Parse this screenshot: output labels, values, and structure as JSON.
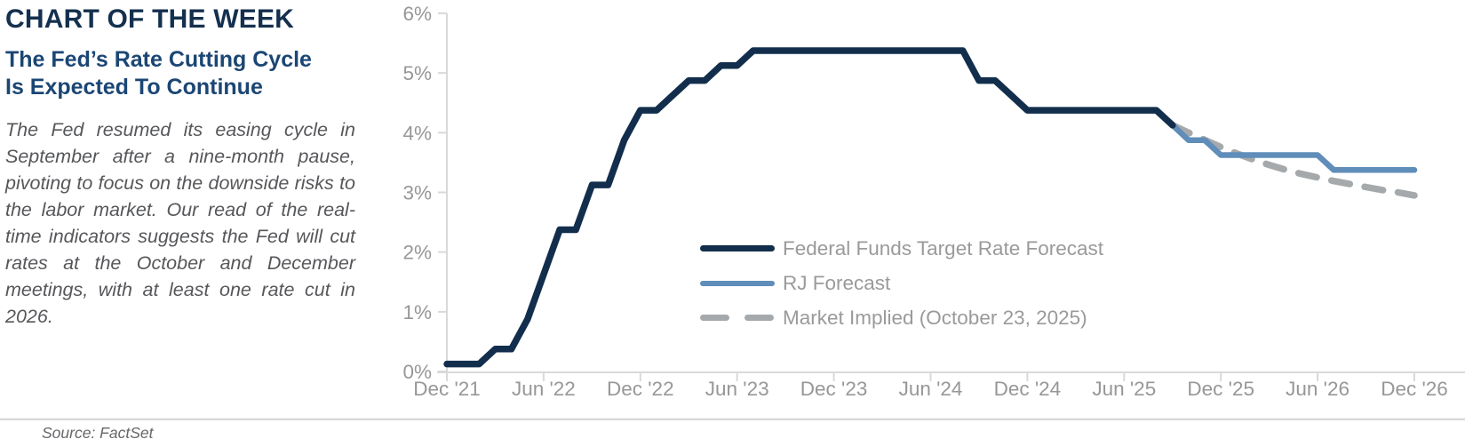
{
  "panel": {
    "kicker": "CHART OF THE WEEK",
    "headline_lines": [
      "The Fed’s Rate Cutting Cycle",
      "Is Expected To Continue"
    ],
    "body": "The Fed resumed its easing cycle in September after a nine-month pause, pivoting to focus on the downside risks to the labor market. Our read of the real-time indicators suggests the Fed will cut rates at the October and December meetings, with at least one rate cut in 2026.",
    "source": "Source: FactSet"
  },
  "colors": {
    "navy": "#122e4c",
    "headline_navy": "#1b4674",
    "kicker_navy": "#14304e",
    "rj_blue": "#608db9",
    "implied_gray": "#a6a9ab",
    "axis_line": "#d9d9d9",
    "axis_text": "#979797",
    "legend_text": "#9a9a9a"
  },
  "chart_data": {
    "type": "line",
    "title": "",
    "xlabel": "",
    "ylabel": "",
    "grid": false,
    "legend_position": "inside lower-right",
    "x_unit": "months since Dec 2021",
    "xlim": [
      0,
      60
    ],
    "ylim": [
      0,
      6
    ],
    "y_tick_labels": [
      "0%",
      "1%",
      "2%",
      "3%",
      "4%",
      "5%",
      "6%"
    ],
    "y_tick_values": [
      0,
      1,
      2,
      3,
      4,
      5,
      6
    ],
    "x_tick_labels": [
      "Dec '21",
      "Jun '22",
      "Dec '22",
      "Jun '23",
      "Dec '23",
      "Jun '24",
      "Dec '24",
      "Jun '25",
      "Dec '25",
      "Jun '26",
      "Dec '26"
    ],
    "x_tick_positions": [
      0,
      6,
      12,
      18,
      24,
      30,
      36,
      42,
      48,
      54,
      60
    ],
    "series": [
      {
        "name": "Federal Funds Target Rate Forecast",
        "color": "#122e4c",
        "style": "solid",
        "stroke_width": 7.5,
        "x_start": 0,
        "x_step": 1,
        "y": [
          0.125,
          0.125,
          0.125,
          0.375,
          0.375,
          0.875,
          1.625,
          2.375,
          2.375,
          3.125,
          3.125,
          3.875,
          4.375,
          4.375,
          4.625,
          4.875,
          4.875,
          5.125,
          5.125,
          5.375,
          5.375,
          5.375,
          5.375,
          5.375,
          5.375,
          5.375,
          5.375,
          5.375,
          5.375,
          5.375,
          5.375,
          5.375,
          5.375,
          4.875,
          4.875,
          4.625,
          4.375,
          4.375,
          4.375,
          4.375,
          4.375,
          4.375,
          4.375,
          4.375,
          4.375,
          4.125
        ]
      },
      {
        "name": "RJ Forecast",
        "color": "#608db9",
        "style": "solid",
        "stroke_width": 6.5,
        "x_start": 45,
        "x_step": 1,
        "y": [
          4.125,
          3.875,
          3.875,
          3.625,
          3.625,
          3.625,
          3.625,
          3.625,
          3.625,
          3.625,
          3.375,
          3.375,
          3.375,
          3.375,
          3.375,
          3.375
        ]
      },
      {
        "name": "Market Implied (October 23, 2025)",
        "color": "#a6a9ab",
        "style": "dashed",
        "stroke_width": 7.5,
        "x_start": 45,
        "x_step": 1,
        "y": [
          4.125,
          4.0,
          3.88,
          3.76,
          3.65,
          3.55,
          3.46,
          3.38,
          3.31,
          3.25,
          3.19,
          3.14,
          3.09,
          3.04,
          3.0,
          2.95
        ]
      }
    ]
  }
}
